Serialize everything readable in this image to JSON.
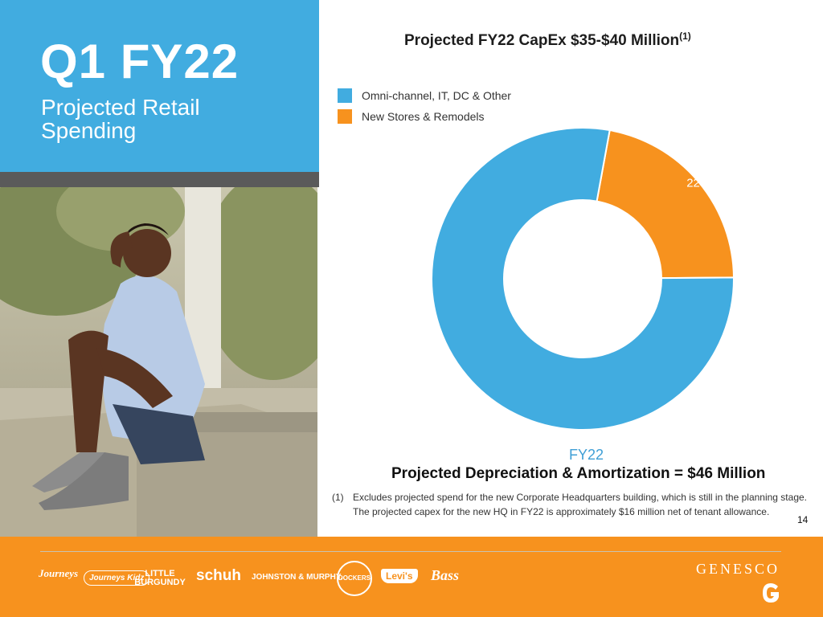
{
  "slide": {
    "title": "Q1 FY22",
    "subtitle": "Projected Retail Spending",
    "page_number": "14"
  },
  "chart_data": {
    "type": "pie",
    "title": "Projected FY22 CapEx $35-$40 Million",
    "title_superscript": "(1)",
    "donut": true,
    "categories": [
      "Omni-channel, IT, DC & Other",
      "New Stores & Remodels"
    ],
    "values": [
      78,
      22
    ],
    "value_labels": [
      "78%",
      "22%"
    ],
    "colors": [
      "#41ace0",
      "#f7921e"
    ],
    "legend_placement": "top-left",
    "xlabel": "FY22"
  },
  "depreciation": {
    "text": "Projected Depreciation & Amortization = $46 Million"
  },
  "footnote": {
    "number": "(1)",
    "text": "Excludes projected spend for the new Corporate Headquarters building, which is still in the planning stage. The projected capex for the new HQ in FY22 is approximately $16 million net of tenant allowance."
  },
  "footer": {
    "brands": [
      "Journeys",
      "Journeys Kidz",
      "LITTLE BURGUNDY",
      "schuh",
      "JOHNSTON & MURPHY.",
      "DOCKERS",
      "Levi's",
      "Bass"
    ],
    "company": "GENESCO",
    "background": "#f7921e"
  }
}
